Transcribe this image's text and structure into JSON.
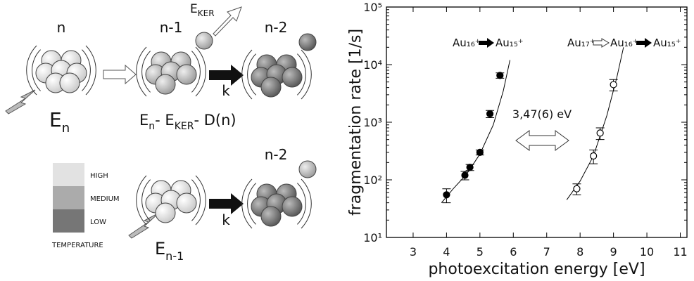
{
  "diagram": {
    "top_row": {
      "cluster_n": "n",
      "cluster_n1": "n-1",
      "cluster_n2": "n-2",
      "ker": [
        "E",
        "KER"
      ],
      "energy_n": [
        "E",
        "n"
      ],
      "energy_after": [
        "E",
        "n",
        "- E",
        "KER",
        "- D(n)"
      ],
      "rate": "k"
    },
    "bottom_row": {
      "cluster_n2": "n-2",
      "energy_n1": [
        "E",
        "n-1"
      ],
      "rate": "k"
    },
    "temperature_legend": {
      "levels": [
        "HIGH",
        "MEDIUM",
        "LOW"
      ],
      "colors": [
        "#e2e2e2",
        "#ababab",
        "#767676"
      ],
      "title": "TEMPERATURE"
    }
  },
  "chart_data": {
    "type": "scatter",
    "xlabel": "photoexcitation energy [eV]",
    "ylabel": "fragmentation rate [1/s]",
    "xlim": [
      2.2,
      11.2
    ],
    "xticks": [
      3,
      4,
      5,
      6,
      7,
      8,
      9,
      10,
      11
    ],
    "ylim": [
      10,
      100000
    ],
    "log_y": true,
    "yticks": [
      {
        "value": 10,
        "label": "10¹"
      },
      {
        "value": 100,
        "label": "10²"
      },
      {
        "value": 1000,
        "label": "10³"
      },
      {
        "value": 10000,
        "label": "10⁴"
      },
      {
        "value": 100000,
        "label": "10⁵"
      }
    ],
    "series": [
      {
        "marker": "filled",
        "color": "#000000",
        "x": [
          4.0,
          4.55,
          4.7,
          5.0,
          5.3,
          5.6
        ],
        "values": [
          55,
          120,
          165,
          300,
          1400,
          6500
        ],
        "errors": [
          15,
          20,
          20,
          30,
          200,
          700
        ]
      },
      {
        "marker": "open",
        "color": "#000000",
        "x": [
          7.9,
          8.4,
          8.6,
          9.0
        ],
        "values": [
          70,
          260,
          650,
          4500
        ],
        "errors": [
          15,
          70,
          150,
          1000
        ]
      }
    ],
    "fits": [
      {
        "x": [
          3.85,
          4.2,
          4.6,
          5.0,
          5.4,
          5.7,
          5.9
        ],
        "values": [
          40,
          70,
          125,
          280,
          900,
          3500,
          12000
        ]
      },
      {
        "x": [
          7.6,
          8.0,
          8.4,
          8.8,
          9.1,
          9.3
        ],
        "values": [
          45,
          95,
          260,
          1300,
          6000,
          20000
        ]
      }
    ],
    "annotations": {
      "left_reaction": [
        "Au₁₆⁺",
        "Au₁₅⁺"
      ],
      "right_reaction": [
        "Au₁₇⁺",
        "Au₁₆⁺",
        "Au₁₅⁺"
      ],
      "gap": "3,47(6) eV"
    }
  }
}
